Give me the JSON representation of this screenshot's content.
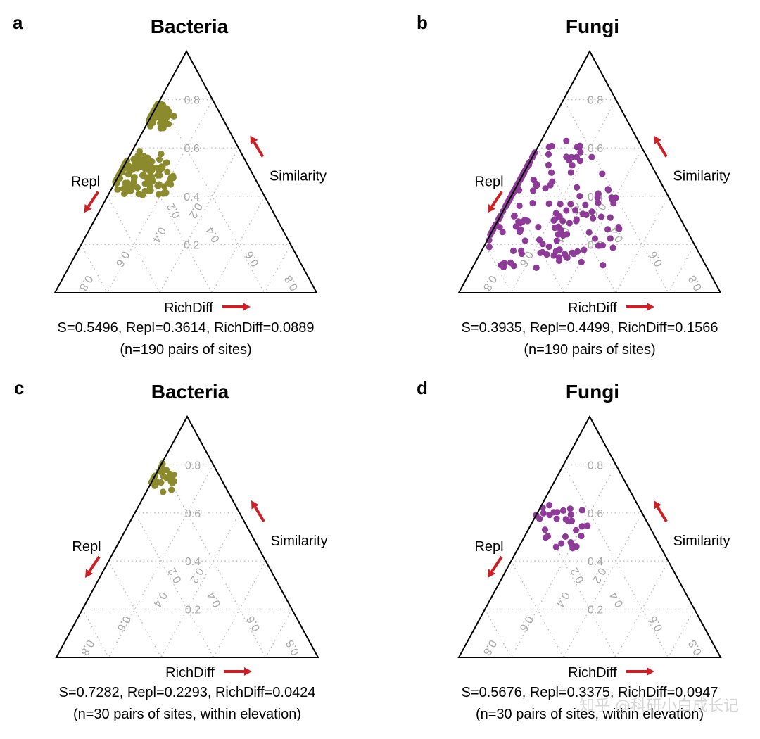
{
  "axes": {
    "top": "Similarity",
    "left": "Repl",
    "bottom": "RichDiff"
  },
  "tick_labels": [
    "0.2",
    "0.4",
    "0.6",
    "0.8"
  ],
  "panels": [
    {
      "label": "a",
      "title": "Bacteria",
      "stats_line": "S=0.5496, Repl=0.3614, RichDiff=0.0889",
      "n_line": "(n=190 pairs of sites)",
      "point_color": "#8b8b2e"
    },
    {
      "label": "b",
      "title": "Fungi",
      "stats_line": "S=0.3935, Repl=0.4499, RichDiff=0.1566",
      "n_line": "(n=190 pairs of sites)",
      "point_color": "#8e3a98"
    },
    {
      "label": "c",
      "title": "Bacteria",
      "stats_line": "S=0.7282, Repl=0.2293, RichDiff=0.0424",
      "n_line": "(n=30 pairs of sites, within elevation)",
      "point_color": "#8b8b2e"
    },
    {
      "label": "d",
      "title": "Fungi",
      "stats_line": "S=0.5676, Repl=0.3375, RichDiff=0.0947",
      "n_line": "(n=30 pairs of sites, within elevation)",
      "point_color": "#8e3a98"
    }
  ],
  "arrow_color": "#cc1f26",
  "watermark": "知乎 @科研小白成长记",
  "chart_data": [
    {
      "type": "scatter",
      "subtype": "ternary",
      "title": "Bacteria",
      "components": [
        "Similarity",
        "Repl",
        "RichDiff"
      ],
      "ticks": [
        0.2,
        0.4,
        0.6,
        0.8
      ],
      "grid": true,
      "n_points": 190,
      "clusters": [
        {
          "similarity": [
            0.68,
            0.8
          ],
          "repl": [
            0.18,
            0.3
          ],
          "richdiff": [
            0.0,
            0.09
          ],
          "count": 60
        },
        {
          "similarity": [
            0.4,
            0.58
          ],
          "repl": [
            0.3,
            0.55
          ],
          "richdiff": [
            0.0,
            0.22
          ],
          "count": 130
        }
      ]
    },
    {
      "type": "scatter",
      "subtype": "ternary",
      "title": "Fungi",
      "components": [
        "Similarity",
        "Repl",
        "RichDiff"
      ],
      "ticks": [
        0.2,
        0.4,
        0.6,
        0.8
      ],
      "grid": true,
      "n_points": 190,
      "clusters": [
        {
          "similarity": [
            0.1,
            0.65
          ],
          "repl": [
            0.2,
            0.8
          ],
          "richdiff": [
            0.0,
            0.5
          ],
          "count": 190
        }
      ]
    },
    {
      "type": "scatter",
      "subtype": "ternary",
      "title": "Bacteria",
      "components": [
        "Similarity",
        "Repl",
        "RichDiff"
      ],
      "ticks": [
        0.2,
        0.4,
        0.6,
        0.8
      ],
      "grid": true,
      "n_points": 30,
      "clusters": [
        {
          "similarity": [
            0.68,
            0.79
          ],
          "repl": [
            0.16,
            0.28
          ],
          "richdiff": [
            0.0,
            0.1
          ],
          "count": 30
        }
      ]
    },
    {
      "type": "scatter",
      "subtype": "ternary",
      "title": "Fungi",
      "components": [
        "Similarity",
        "Repl",
        "RichDiff"
      ],
      "ticks": [
        0.2,
        0.4,
        0.6,
        0.8
      ],
      "grid": true,
      "n_points": 30,
      "clusters": [
        {
          "similarity": [
            0.45,
            0.64
          ],
          "repl": [
            0.22,
            0.42
          ],
          "richdiff": [
            0.02,
            0.22
          ],
          "count": 30
        }
      ]
    }
  ]
}
